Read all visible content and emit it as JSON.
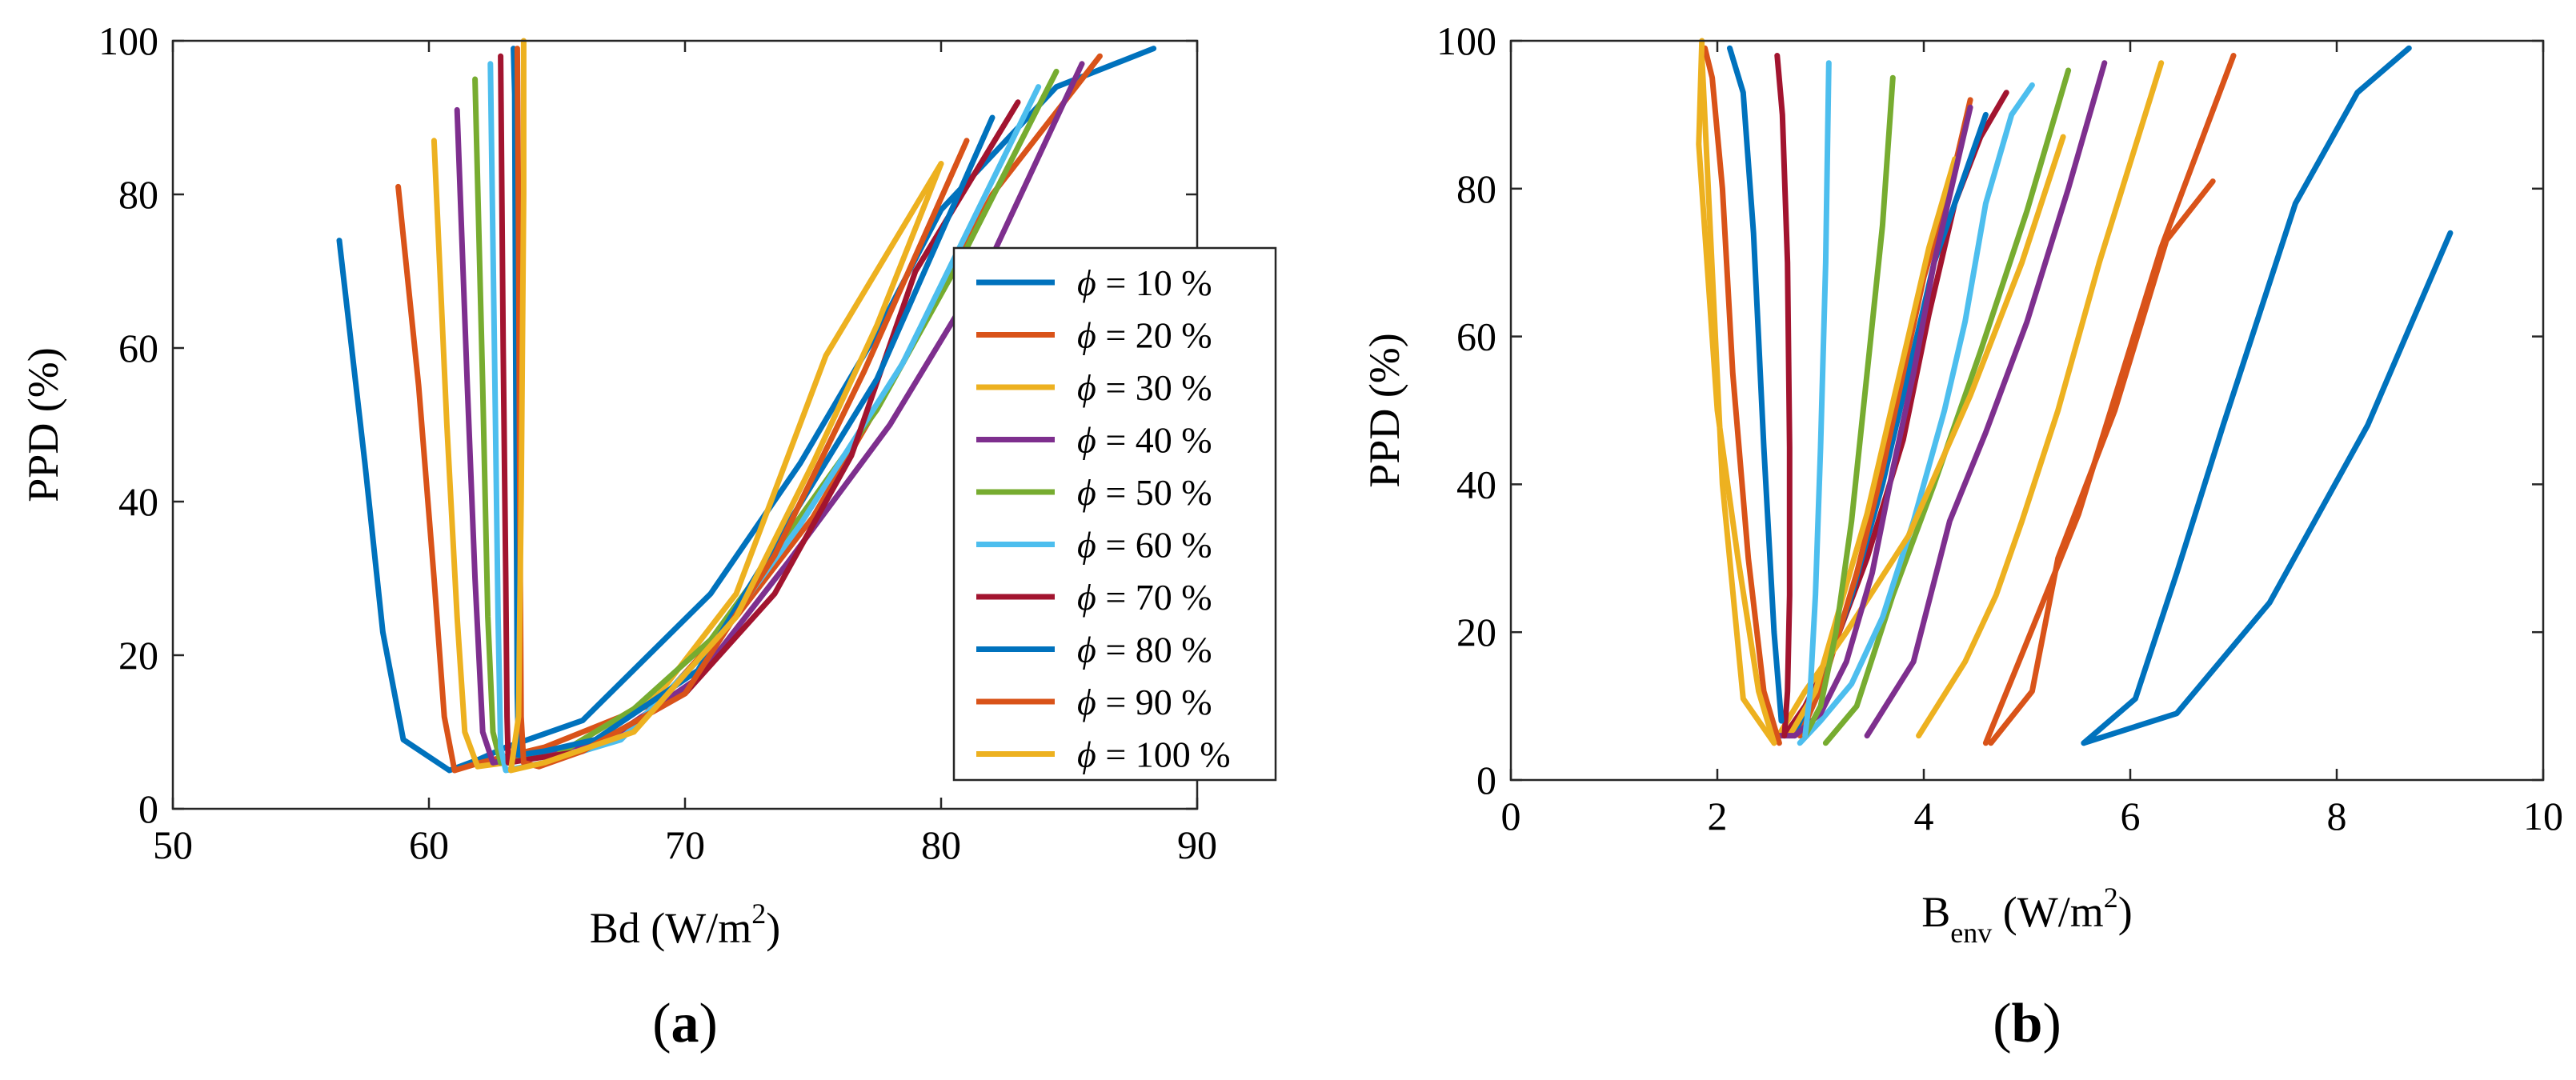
{
  "figure": {
    "panels": [
      {
        "label_open": "(",
        "label": "a",
        "label_close": ")"
      },
      {
        "label_open": "(",
        "label": "b",
        "label_close": ")"
      }
    ]
  },
  "legend": {
    "symbol": "ϕ",
    "entries": [
      "ϕ = 10 %",
      "ϕ = 20 %",
      "ϕ = 30 %",
      "ϕ = 40 %",
      "ϕ = 50 %",
      "ϕ = 60 %",
      "ϕ = 70 %",
      "ϕ = 80 %",
      "ϕ = 90 %",
      "ϕ = 100 %"
    ],
    "placement": "center-right of panel (a)"
  },
  "colors": [
    "#0072bd",
    "#d95319",
    "#edb120",
    "#7e2f8e",
    "#77ac30",
    "#4dbeee",
    "#a2142f",
    "#0072bd",
    "#d95319",
    "#edb120"
  ],
  "chart_data": [
    {
      "type": "line",
      "panel": "(a)",
      "title": "",
      "xlabel": "Bd (W/m2)",
      "xlabel_main": "Bd (W/m",
      "xlabel_sup": "2",
      "xlabel_end": ")",
      "ylabel": "PPD (%)",
      "xlim": [
        50,
        90
      ],
      "ylim": [
        0,
        100
      ],
      "xticks": [
        50,
        60,
        70,
        80,
        90
      ],
      "yticks": [
        0,
        20,
        40,
        60,
        80,
        100
      ],
      "series": [
        {
          "name": "ϕ = 10 %",
          "x": [
            56.5,
            57.5,
            58.2,
            59.0,
            60.8,
            62.0,
            63.0,
            66.0,
            71.0,
            74.5,
            77.5,
            80.0,
            84.5,
            88.3
          ],
          "y": [
            74,
            45,
            23,
            9,
            5,
            6.5,
            8,
            11.5,
            28,
            45,
            62,
            78,
            94,
            99
          ]
        },
        {
          "name": "ϕ = 20 %",
          "x": [
            58.8,
            59.6,
            60.2,
            60.6,
            61.0,
            62.0,
            64.5,
            69.0,
            72.0,
            75.0,
            78.5,
            82.0,
            86.2
          ],
          "y": [
            81,
            55,
            30,
            12,
            5,
            6,
            8,
            14,
            25,
            38,
            58,
            80,
            98
          ]
        },
        {
          "name": "ϕ = 30 %",
          "x": [
            60.2,
            60.7,
            61.1,
            61.4,
            61.9,
            63.0,
            65.5,
            69.0,
            72.0,
            75.5,
            80.0
          ],
          "y": [
            87,
            50,
            25,
            10,
            5.5,
            6,
            8,
            15,
            28,
            59,
            84
          ]
        },
        {
          "name": "ϕ = 40 %",
          "x": [
            61.1,
            61.5,
            61.8,
            62.1,
            62.5,
            64.0,
            67.0,
            70.5,
            74.0,
            78.0,
            82.0,
            85.5
          ],
          "y": [
            91,
            55,
            30,
            10,
            6,
            7,
            9,
            17,
            32,
            50,
            72,
            97
          ]
        },
        {
          "name": "ϕ = 50 %",
          "x": [
            61.8,
            62.1,
            62.3,
            62.5,
            62.8,
            65.0,
            68.0,
            71.0,
            74.5,
            77.5,
            81.0,
            84.5
          ],
          "y": [
            95,
            55,
            25,
            10,
            6,
            7,
            13,
            22,
            38,
            52,
            73,
            96
          ]
        },
        {
          "name": "ϕ = 60 %",
          "x": [
            62.4,
            62.6,
            62.7,
            62.8,
            63.0,
            64.5,
            67.5,
            71.0,
            74.5,
            78.5,
            83.8
          ],
          "y": [
            97,
            50,
            25,
            8,
            5,
            6,
            9,
            21,
            37,
            58,
            94
          ]
        },
        {
          "name": "ϕ = 70 %",
          "x": [
            62.8,
            62.9,
            63.0,
            63.05,
            63.1,
            64.0,
            66.0,
            70.0,
            73.5,
            76.5,
            79.0,
            83.0
          ],
          "y": [
            98,
            60,
            30,
            12,
            6,
            6.5,
            7.5,
            15,
            28,
            46,
            70,
            92
          ]
        },
        {
          "name": "ϕ = 80 %",
          "x": [
            63.3,
            63.35,
            63.4,
            63.45,
            63.5,
            64.5,
            66.5,
            70.5,
            74.0,
            77.5,
            82.0
          ],
          "y": [
            99,
            93,
            50,
            15,
            7,
            7.5,
            9,
            18,
            37,
            56,
            90
          ]
        },
        {
          "name": "ϕ = 90 %",
          "x": [
            63.45,
            63.5,
            63.55,
            63.6,
            63.7,
            64.3,
            66.0,
            70.0,
            73.5,
            77.0,
            81.0
          ],
          "y": [
            99,
            75,
            40,
            12,
            6,
            5.5,
            7.5,
            15,
            33,
            57,
            87
          ]
        },
        {
          "name": "ϕ = 100 %",
          "x": [
            63.7,
            63.7,
            63.6,
            63.5,
            63.2,
            64.5,
            68.0,
            72.0,
            75.0,
            77.5,
            80.0
          ],
          "y": [
            100,
            80,
            40,
            12,
            5,
            6,
            10,
            25,
            45,
            63,
            84
          ]
        }
      ]
    },
    {
      "type": "line",
      "panel": "(b)",
      "title": "",
      "xlabel": "Benv (W/m2)",
      "xlabel_main": "B",
      "xlabel_sub": "env",
      "xlabel_mid": " (W/m",
      "xlabel_sup": "2",
      "xlabel_end": ")",
      "ylabel": "PPD (%)",
      "xlim": [
        0,
        10
      ],
      "ylim": [
        0,
        100
      ],
      "xticks": [
        0,
        2,
        4,
        6,
        8,
        10
      ],
      "yticks": [
        0,
        20,
        40,
        60,
        80,
        100
      ],
      "series": [
        {
          "name": "ϕ = 10 %",
          "x": [
            9.1,
            8.3,
            7.35,
            6.45,
            5.55
          ],
          "y": [
            74,
            48,
            24,
            9,
            5
          ]
        },
        {
          "name": "ϕ = 20 %",
          "x": [
            6.8,
            6.35,
            5.85,
            5.3,
            5.05,
            4.65
          ],
          "y": [
            81,
            73,
            50,
            30,
            12,
            5
          ]
        },
        {
          "name": "ϕ = 30 %",
          "x": [
            6.3,
            5.7,
            5.3,
            4.95,
            4.7,
            4.4,
            3.95
          ],
          "y": [
            97,
            70,
            50,
            35,
            25,
            16,
            6
          ]
        },
        {
          "name": "ϕ = 40 %",
          "x": [
            5.75,
            5.4,
            5.0,
            4.6,
            4.25,
            3.9,
            3.45
          ],
          "y": [
            97,
            80,
            62,
            47,
            35,
            16,
            6
          ]
        },
        {
          "name": "ϕ = 50 %",
          "x": [
            5.4,
            5.0,
            4.55,
            4.1,
            3.7,
            3.35,
            3.05
          ],
          "y": [
            96,
            77,
            58,
            40,
            25,
            10,
            5
          ]
        },
        {
          "name": "ϕ = 60 %",
          "x": [
            5.05,
            4.85,
            4.6,
            4.4,
            4.2,
            3.9,
            3.6,
            3.3,
            3.0,
            2.8
          ],
          "y": [
            94,
            90,
            78,
            62,
            50,
            35,
            22,
            13,
            8,
            5
          ]
        },
        {
          "name": "ϕ = 70 %",
          "x": [
            4.8,
            4.55,
            4.3,
            4.05,
            3.8,
            3.45,
            3.1,
            2.85,
            2.65
          ],
          "y": [
            93,
            87,
            78,
            63,
            46,
            30,
            17,
            10,
            6
          ]
        },
        {
          "name": "ϕ = 80 %",
          "x": [
            4.6,
            4.35,
            4.1,
            3.85,
            3.6,
            3.3,
            3.0,
            2.75
          ],
          "y": [
            90,
            80,
            70,
            55,
            40,
            25,
            13,
            6
          ]
        },
        {
          "name": "ϕ = 90 %",
          "x": [
            4.45,
            4.25,
            4.0,
            3.8,
            3.6,
            3.35,
            3.05,
            2.8
          ],
          "y": [
            92,
            80,
            68,
            55,
            42,
            28,
            14,
            6
          ]
        },
        {
          "name": "ϕ = 100 %",
          "x": [
            4.3,
            4.05,
            3.85,
            3.65,
            3.45,
            3.2,
            2.95,
            2.7
          ],
          "y": [
            84,
            72,
            60,
            48,
            36,
            24,
            12,
            6
          ]
        },
        {
          "name": "ϕ = 10 % (2)",
          "x": [
            8.7,
            8.2,
            7.6,
            6.9,
            6.45,
            6.05,
            5.55
          ],
          "y": [
            99,
            93,
            78,
            48,
            28,
            11,
            5
          ]
        },
        {
          "name": "ϕ = 20 % (2)",
          "x": [
            7.0,
            6.3,
            5.5,
            4.95,
            4.6
          ],
          "y": [
            98,
            72,
            36,
            17,
            5
          ]
        },
        {
          "name": "ϕ = 30 % (2)",
          "x": [
            5.35,
            4.95,
            4.45,
            3.85,
            3.25,
            2.85,
            2.55,
            2.25,
            2.05,
            1.85
          ],
          "y": [
            87,
            70,
            52,
            33,
            20,
            12,
            5,
            11,
            40,
            98
          ]
        },
        {
          "name": "ϕ = 40 % (2)",
          "x": [
            4.45,
            4.3,
            4.1,
            3.9,
            3.7,
            3.5,
            3.25,
            3.0,
            2.75,
            2.6
          ],
          "y": [
            91,
            82,
            70,
            55,
            42,
            28,
            16,
            9,
            6,
            6
          ]
        },
        {
          "name": "ϕ = 50 % (2)",
          "x": [
            3.7,
            3.6,
            3.45,
            3.3,
            3.15,
            3.0,
            2.85
          ],
          "y": [
            95,
            75,
            55,
            35,
            20,
            10,
            6
          ]
        },
        {
          "name": "ϕ = 60 % (2)",
          "x": [
            3.08,
            3.05,
            3.0,
            2.95,
            2.9,
            2.85
          ],
          "y": [
            97,
            70,
            45,
            25,
            12,
            6
          ]
        },
        {
          "name": "ϕ = 70 % (2)",
          "x": [
            2.58,
            2.63,
            2.68,
            2.7,
            2.7,
            2.68,
            2.65
          ],
          "y": [
            98,
            90,
            70,
            45,
            25,
            12,
            6
          ]
        },
        {
          "name": "ϕ = 80 % (2)",
          "x": [
            2.12,
            2.25,
            2.35,
            2.45,
            2.55,
            2.62
          ],
          "y": [
            99,
            93,
            74,
            45,
            20,
            8
          ]
        },
        {
          "name": "ϕ = 90 % (2)",
          "x": [
            1.88,
            1.95,
            2.05,
            2.15,
            2.3,
            2.45,
            2.6
          ],
          "y": [
            99,
            95,
            80,
            55,
            30,
            12,
            5
          ]
        },
        {
          "name": "ϕ = 100 % (2)",
          "x": [
            1.85,
            1.82,
            1.9,
            2.0,
            2.2,
            2.4,
            2.55
          ],
          "y": [
            100,
            86,
            70,
            50,
            30,
            12,
            5
          ]
        }
      ]
    }
  ]
}
